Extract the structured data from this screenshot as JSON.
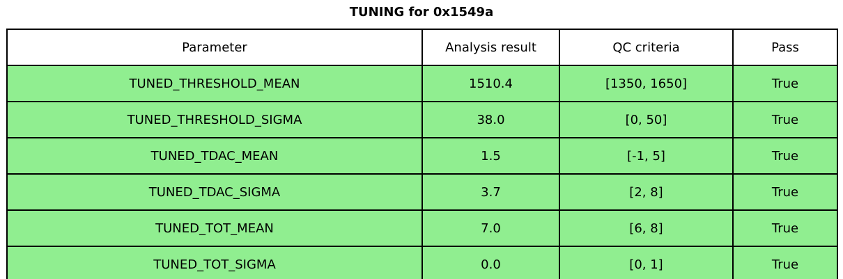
{
  "title": "TUNING for 0x1549a",
  "colors": {
    "row_green": "#90ee90",
    "header_bg": "#ffffff",
    "border": "#000000",
    "text": "#000000"
  },
  "chart_data": {
    "type": "table",
    "title": "TUNING for 0x1549a",
    "columns": [
      "Parameter",
      "Analysis result",
      "QC criteria",
      "Pass"
    ],
    "rows": [
      [
        "TUNED_THRESHOLD_MEAN",
        "1510.4",
        "[1350, 1650]",
        "True"
      ],
      [
        "TUNED_THRESHOLD_SIGMA",
        "38.0",
        "[0, 50]",
        "True"
      ],
      [
        "TUNED_TDAC_MEAN",
        "1.5",
        "[-1, 5]",
        "True"
      ],
      [
        "TUNED_TDAC_SIGMA",
        "3.7",
        "[2, 8]",
        "True"
      ],
      [
        "TUNED_TOT_MEAN",
        "7.0",
        "[6, 8]",
        "True"
      ],
      [
        "TUNED_TOT_SIGMA",
        "0.0",
        "[0, 1]",
        "True"
      ]
    ],
    "legend": false,
    "grid": true
  }
}
